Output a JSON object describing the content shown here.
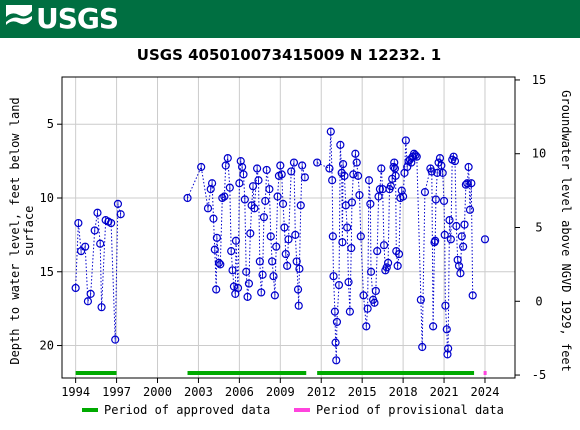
{
  "header": {
    "logo_text": "USGS"
  },
  "chart_data": {
    "type": "scatter",
    "title": "USGS 405010073415009 N 12232. 1",
    "ylabel": "Depth to water level, feet below land surface",
    "y2label": "Groundwater level above NGVD 1929, feet",
    "x_ticks": [
      "1994",
      "1997",
      "2000",
      "2003",
      "2006",
      "2009",
      "2012",
      "2015",
      "2018",
      "2021",
      "2024"
    ],
    "x_tick_values": [
      1994,
      1997,
      2000,
      2003,
      2006,
      2009,
      2012,
      2015,
      2018,
      2021,
      2024
    ],
    "xlim": [
      1993.0,
      2026.2
    ],
    "y_ticks": [
      "5",
      "10",
      "15",
      "20"
    ],
    "y_tick_values": [
      5,
      10,
      15,
      20
    ],
    "ylim": [
      22.2,
      1.8
    ],
    "y2_ticks": [
      "15",
      "10",
      "5",
      "0",
      "-5"
    ],
    "y2_tick_values": [
      15,
      10,
      5,
      0,
      -5
    ],
    "y2lim": [
      -5.2,
      15.2
    ],
    "grid": true,
    "segments": [
      [
        [
          1994.0,
          16.1
        ],
        [
          1994.2,
          11.7
        ],
        [
          1994.4,
          13.6
        ],
        [
          1994.7,
          13.3
        ],
        [
          1994.9,
          17.0
        ],
        [
          1995.1,
          16.5
        ],
        [
          1995.4,
          12.2
        ],
        [
          1995.6,
          11.0
        ],
        [
          1995.8,
          13.1
        ],
        [
          1995.9,
          17.4
        ],
        [
          1996.2,
          11.5
        ],
        [
          1996.4,
          11.6
        ],
        [
          1996.6,
          11.7
        ],
        [
          1996.9,
          19.6
        ],
        [
          1997.1,
          10.4
        ],
        [
          1997.3,
          11.1
        ]
      ],
      [
        [
          2002.2,
          10.0
        ],
        [
          2003.2,
          7.9
        ],
        [
          2003.7,
          10.7
        ],
        [
          2003.9,
          9.4
        ],
        [
          2004.0,
          9.0
        ],
        [
          2004.1,
          11.4
        ],
        [
          2004.2,
          13.5
        ],
        [
          2004.3,
          16.2
        ],
        [
          2004.35,
          12.7
        ],
        [
          2004.5,
          14.4
        ],
        [
          2004.6,
          14.5
        ],
        [
          2004.75,
          10.0
        ],
        [
          2004.9,
          9.9
        ],
        [
          2005.0,
          7.8
        ],
        [
          2005.15,
          7.3
        ],
        [
          2005.3,
          9.3
        ],
        [
          2005.4,
          13.6
        ],
        [
          2005.5,
          14.9
        ],
        [
          2005.6,
          16.0
        ],
        [
          2005.7,
          16.5
        ],
        [
          2005.75,
          12.9
        ],
        [
          2005.9,
          16.1
        ],
        [
          2006.0,
          9.0
        ],
        [
          2006.1,
          7.5
        ],
        [
          2006.2,
          7.9
        ],
        [
          2006.3,
          8.4
        ],
        [
          2006.4,
          10.1
        ],
        [
          2006.5,
          15.0
        ],
        [
          2006.6,
          16.7
        ],
        [
          2006.7,
          15.8
        ],
        [
          2006.8,
          12.4
        ],
        [
          2006.9,
          10.5
        ],
        [
          2007.0,
          9.2
        ],
        [
          2007.1,
          10.7
        ],
        [
          2007.3,
          8.0
        ],
        [
          2007.4,
          8.8
        ],
        [
          2007.5,
          14.3
        ],
        [
          2007.6,
          16.4
        ],
        [
          2007.7,
          15.2
        ],
        [
          2007.8,
          11.3
        ],
        [
          2007.9,
          10.2
        ],
        [
          2008.0,
          8.1
        ],
        [
          2008.2,
          9.4
        ],
        [
          2008.3,
          12.6
        ],
        [
          2008.4,
          14.3
        ],
        [
          2008.5,
          15.3
        ],
        [
          2008.6,
          16.6
        ],
        [
          2008.7,
          13.3
        ],
        [
          2008.8,
          9.9
        ],
        [
          2008.9,
          8.5
        ],
        [
          2009.0,
          7.8
        ],
        [
          2009.1,
          8.4
        ],
        [
          2009.2,
          10.4
        ],
        [
          2009.3,
          12.0
        ],
        [
          2009.4,
          13.8
        ],
        [
          2009.5,
          14.6
        ],
        [
          2009.6,
          12.8
        ],
        [
          2009.8,
          8.2
        ],
        [
          2010.0,
          7.6
        ],
        [
          2010.1,
          12.5
        ],
        [
          2010.2,
          14.3
        ],
        [
          2010.3,
          16.2
        ],
        [
          2010.35,
          17.3
        ],
        [
          2010.4,
          14.8
        ],
        [
          2010.5,
          10.5
        ],
        [
          2010.6,
          7.8
        ],
        [
          2010.8,
          8.6
        ]
      ],
      [
        [
          2011.7,
          7.6
        ],
        [
          2012.6,
          8.0
        ],
        [
          2012.7,
          5.5
        ],
        [
          2012.8,
          8.8
        ],
        [
          2012.85,
          12.6
        ],
        [
          2012.9,
          15.3
        ],
        [
          2013.0,
          17.7
        ],
        [
          2013.05,
          19.8
        ],
        [
          2013.1,
          21.0
        ],
        [
          2013.15,
          18.4
        ],
        [
          2013.3,
          15.9
        ],
        [
          2013.4,
          6.4
        ],
        [
          2013.5,
          8.3
        ],
        [
          2013.55,
          13.0
        ],
        [
          2013.6,
          7.7
        ],
        [
          2013.7,
          8.5
        ],
        [
          2013.8,
          10.5
        ],
        [
          2013.9,
          12.0
        ],
        [
          2014.0,
          15.7
        ],
        [
          2014.1,
          17.7
        ],
        [
          2014.2,
          13.4
        ],
        [
          2014.25,
          10.3
        ],
        [
          2014.35,
          8.4
        ],
        [
          2014.5,
          7.0
        ],
        [
          2014.6,
          7.6
        ],
        [
          2014.7,
          8.5
        ],
        [
          2014.8,
          9.8
        ],
        [
          2014.9,
          12.6
        ],
        [
          2015.1,
          16.6
        ],
        [
          2015.3,
          18.7
        ],
        [
          2015.4,
          17.5
        ],
        [
          2015.5,
          8.8
        ],
        [
          2015.6,
          10.4
        ],
        [
          2015.65,
          15.0
        ],
        [
          2015.8,
          16.9
        ],
        [
          2015.9,
          17.1
        ],
        [
          2016.0,
          16.3
        ],
        [
          2016.1,
          13.6
        ],
        [
          2016.2,
          9.9
        ],
        [
          2016.3,
          9.4
        ],
        [
          2016.4,
          8.0
        ],
        [
          2016.5,
          9.4
        ],
        [
          2016.6,
          13.2
        ],
        [
          2016.7,
          14.9
        ],
        [
          2016.8,
          14.7
        ],
        [
          2016.9,
          14.4
        ],
        [
          2017.0,
          9.4
        ],
        [
          2017.1,
          9.2
        ],
        [
          2017.2,
          8.7
        ],
        [
          2017.3,
          7.9
        ],
        [
          2017.35,
          7.6
        ],
        [
          2017.4,
          8.0
        ],
        [
          2017.45,
          8.5
        ],
        [
          2017.5,
          13.6
        ],
        [
          2017.6,
          14.6
        ],
        [
          2017.7,
          13.8
        ],
        [
          2017.8,
          10.0
        ],
        [
          2017.9,
          9.5
        ],
        [
          2018.0,
          9.9
        ],
        [
          2018.1,
          8.3
        ],
        [
          2018.2,
          6.1
        ],
        [
          2018.3,
          7.9
        ],
        [
          2018.4,
          7.5
        ],
        [
          2018.5,
          7.4
        ],
        [
          2018.6,
          7.6
        ],
        [
          2018.7,
          7.2
        ],
        [
          2018.8,
          7.0
        ],
        [
          2018.9,
          7.1
        ],
        [
          2019.0,
          7.2
        ],
        [
          2019.3,
          16.9
        ],
        [
          2019.4,
          20.1
        ],
        [
          2019.6,
          9.6
        ],
        [
          2020.0,
          8.0
        ],
        [
          2020.1,
          8.2
        ],
        [
          2020.2,
          18.7
        ],
        [
          2020.3,
          13.0
        ],
        [
          2020.35,
          12.9
        ],
        [
          2020.4,
          10.1
        ],
        [
          2020.5,
          8.3
        ],
        [
          2020.6,
          7.6
        ],
        [
          2020.7,
          7.3
        ],
        [
          2020.8,
          7.8
        ],
        [
          2020.9,
          8.3
        ],
        [
          2021.0,
          10.2
        ],
        [
          2021.05,
          12.5
        ],
        [
          2021.1,
          17.3
        ],
        [
          2021.2,
          18.9
        ],
        [
          2021.25,
          20.6
        ],
        [
          2021.3,
          20.2
        ],
        [
          2021.4,
          11.5
        ],
        [
          2021.5,
          12.8
        ],
        [
          2021.6,
          7.4
        ],
        [
          2021.7,
          7.2
        ],
        [
          2021.8,
          7.5
        ],
        [
          2021.9,
          11.9
        ],
        [
          2022.0,
          14.2
        ],
        [
          2022.1,
          14.6
        ],
        [
          2022.2,
          15.1
        ],
        [
          2022.3,
          12.6
        ],
        [
          2022.4,
          13.3
        ],
        [
          2022.5,
          11.8
        ],
        [
          2022.6,
          9.1
        ],
        [
          2022.7,
          9.0
        ],
        [
          2022.8,
          7.9
        ],
        [
          2022.9,
          10.8
        ],
        [
          2023.0,
          9.0
        ],
        [
          2023.1,
          16.6
        ]
      ],
      [
        [
          2024.0,
          12.8
        ]
      ]
    ],
    "bands": {
      "approved": [
        [
          1994.0,
          1997.0
        ],
        [
          2002.2,
          2010.9
        ],
        [
          2011.7,
          2023.2
        ]
      ],
      "provisional": [
        [
          2023.9,
          2024.1
        ]
      ]
    },
    "colors": {
      "points": "#0000cc",
      "approved": "#00aa00",
      "provisional": "#ff44dd",
      "grid": "#cccccc"
    },
    "legend": {
      "placement": "bottom",
      "items": [
        {
          "label": "Period of approved data",
          "color": "#00aa00"
        },
        {
          "label": "Period of provisional data",
          "color": "#ff44dd"
        }
      ]
    }
  }
}
